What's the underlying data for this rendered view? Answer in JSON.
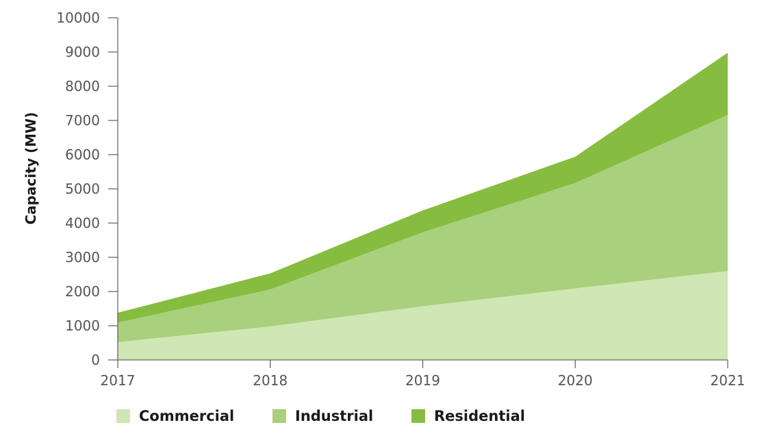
{
  "chart_data": {
    "type": "area",
    "stacked": true,
    "ylabel": "Capacity (MW)",
    "xlabel": "",
    "x": [
      "2017",
      "2018",
      "2019",
      "2020",
      "2021"
    ],
    "ylim": [
      0,
      10000
    ],
    "yticks": [
      0,
      1000,
      2000,
      3000,
      4000,
      5000,
      6000,
      7000,
      8000,
      9000,
      10000
    ],
    "grid": false,
    "legend_position": "bottom",
    "series": [
      {
        "name": "Commercial",
        "color": "#d0e6b4",
        "values": [
          520,
          980,
          1570,
          2090,
          2600
        ]
      },
      {
        "name": "Industrial",
        "color": "#a9d07c",
        "values": [
          570,
          1080,
          2160,
          3080,
          4560
        ]
      },
      {
        "name": "Residential",
        "color": "#86bd40",
        "values": [
          290,
          470,
          640,
          770,
          1820
        ]
      }
    ]
  }
}
